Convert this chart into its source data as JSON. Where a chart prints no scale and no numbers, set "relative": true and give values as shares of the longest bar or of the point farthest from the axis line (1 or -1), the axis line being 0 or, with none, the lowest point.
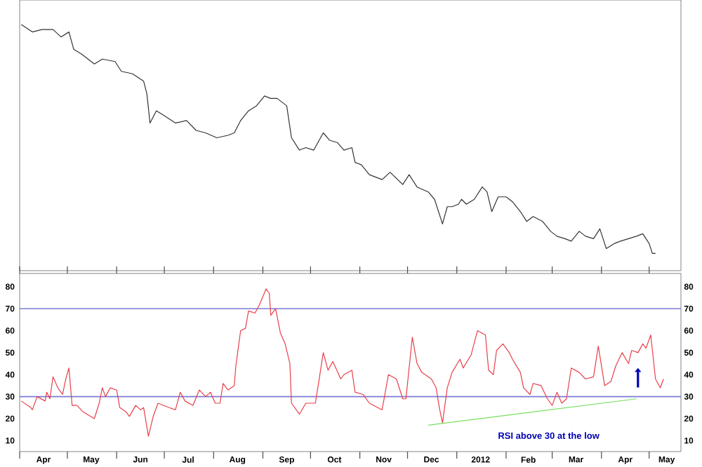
{
  "chart_data": [
    {
      "type": "line",
      "relative": true,
      "xlim": [
        "2011-04-01",
        "2012-05-21"
      ],
      "series": [
        {
          "color": "#333333",
          "x": [
            "2011-04-02",
            "2011-04-09",
            "2011-04-15",
            "2011-04-22",
            "2011-04-27",
            "2011-05-02",
            "2011-05-05",
            "2011-05-10",
            "2011-05-18",
            "2011-05-23",
            "2011-05-31",
            "2011-06-04",
            "2011-06-11",
            "2011-06-18",
            "2011-06-20",
            "2011-06-22",
            "2011-06-26",
            "2011-07-01",
            "2011-07-08",
            "2011-07-15",
            "2011-07-21",
            "2011-07-27",
            "2011-08-03",
            "2011-08-10",
            "2011-08-14",
            "2011-08-18",
            "2011-08-23",
            "2011-08-28",
            "2011-09-02",
            "2011-09-06",
            "2011-09-10",
            "2011-09-16",
            "2011-09-19",
            "2011-09-24",
            "2011-09-28",
            "2011-10-03",
            "2011-10-09",
            "2011-10-13",
            "2011-10-18",
            "2011-10-22",
            "2011-10-27",
            "2011-10-29",
            "2011-11-02",
            "2011-11-07",
            "2011-11-15",
            "2011-11-20",
            "2011-11-28",
            "2011-12-02",
            "2011-12-07",
            "2011-12-14",
            "2011-12-18",
            "2011-12-23",
            "2011-12-26",
            "2011-12-29",
            "2012-01-02",
            "2012-01-04",
            "2012-01-07",
            "2012-01-12",
            "2012-01-17",
            "2012-01-20",
            "2012-01-23",
            "2012-01-27",
            "2012-02-01",
            "2012-02-05",
            "2012-02-10",
            "2012-02-14",
            "2012-02-18",
            "2012-02-24",
            "2012-02-29",
            "2012-03-04",
            "2012-03-09",
            "2012-03-13",
            "2012-03-18",
            "2012-03-22",
            "2012-03-27",
            "2012-03-31",
            "2012-04-04",
            "2012-04-09",
            "2012-04-13",
            "2012-04-18",
            "2012-04-23",
            "2012-04-27",
            "2012-05-01",
            "2012-05-03",
            "2012-05-05"
          ],
          "values": [
            1.0,
            0.97,
            0.98,
            0.98,
            0.95,
            0.97,
            0.9,
            0.88,
            0.84,
            0.86,
            0.85,
            0.81,
            0.8,
            0.77,
            0.72,
            0.6,
            0.65,
            0.63,
            0.6,
            0.61,
            0.57,
            0.56,
            0.54,
            0.55,
            0.56,
            0.61,
            0.65,
            0.67,
            0.71,
            0.7,
            0.7,
            0.67,
            0.54,
            0.49,
            0.5,
            0.49,
            0.56,
            0.53,
            0.52,
            0.49,
            0.5,
            0.44,
            0.43,
            0.39,
            0.37,
            0.4,
            0.35,
            0.39,
            0.34,
            0.32,
            0.29,
            0.19,
            0.26,
            0.26,
            0.27,
            0.29,
            0.27,
            0.29,
            0.34,
            0.32,
            0.24,
            0.3,
            0.3,
            0.28,
            0.24,
            0.2,
            0.22,
            0.2,
            0.16,
            0.14,
            0.13,
            0.12,
            0.16,
            0.14,
            0.13,
            0.17,
            0.09,
            0.11,
            0.12,
            0.13,
            0.14,
            0.15,
            0.11,
            0.07,
            0.07
          ]
        }
      ]
    },
    {
      "type": "line",
      "xlim": [
        "2011-04-01",
        "2012-05-21"
      ],
      "ylim": [
        5,
        86
      ],
      "y2lim": [
        5,
        86
      ],
      "yticks": [
        10,
        20,
        30,
        40,
        50,
        60,
        70,
        80
      ],
      "y2ticks": [
        10,
        20,
        30,
        40,
        50,
        60,
        70,
        80
      ],
      "xticks": [
        {
          "value": "2011-04-01",
          "label": null
        },
        {
          "value": "2011-04-16",
          "label": "Apr"
        },
        {
          "value": "2011-05-01",
          "label": null
        },
        {
          "value": "2011-05-16",
          "label": "May"
        },
        {
          "value": "2011-06-01",
          "label": null
        },
        {
          "value": "2011-06-16",
          "label": "Jun"
        },
        {
          "value": "2011-07-01",
          "label": null
        },
        {
          "value": "2011-07-16",
          "label": "Jul"
        },
        {
          "value": "2011-08-01",
          "label": null
        },
        {
          "value": "2011-08-16",
          "label": "Aug"
        },
        {
          "value": "2011-09-01",
          "label": null
        },
        {
          "value": "2011-09-16",
          "label": "Sep"
        },
        {
          "value": "2011-10-01",
          "label": null
        },
        {
          "value": "2011-10-16",
          "label": "Oct"
        },
        {
          "value": "2011-11-01",
          "label": null
        },
        {
          "value": "2011-11-16",
          "label": "Nov"
        },
        {
          "value": "2011-12-01",
          "label": null
        },
        {
          "value": "2011-12-16",
          "label": "Dec"
        },
        {
          "value": "2012-01-01",
          "label": null
        },
        {
          "value": "2012-01-16",
          "label": "2012"
        },
        {
          "value": "2012-02-01",
          "label": null
        },
        {
          "value": "2012-02-15",
          "label": "Feb"
        },
        {
          "value": "2012-03-01",
          "label": null
        },
        {
          "value": "2012-03-16",
          "label": "Mar"
        },
        {
          "value": "2012-04-01",
          "label": null
        },
        {
          "value": "2012-04-16",
          "label": "Apr"
        },
        {
          "value": "2012-05-01",
          "label": null
        },
        {
          "value": "2012-05-12",
          "label": "May"
        }
      ],
      "ref_lines": [
        {
          "axis": "y",
          "value": 70,
          "color": "#7b7bd6"
        },
        {
          "axis": "y",
          "value": 30,
          "color": "#7b7bd6"
        }
      ],
      "annotations": [
        "RSI above 30 at the low"
      ],
      "series": [
        {
          "color": "#e8404a",
          "x": [
            "2011-04-02",
            "2011-04-08",
            "2011-04-09",
            "2011-04-12",
            "2011-04-17",
            "2011-04-18",
            "2011-04-20",
            "2011-04-22",
            "2011-04-25",
            "2011-04-28",
            "2011-04-30",
            "2011-05-02",
            "2011-05-04",
            "2011-05-07",
            "2011-05-11",
            "2011-05-18",
            "2011-05-21",
            "2011-05-23",
            "2011-05-25",
            "2011-05-28",
            "2011-06-01",
            "2011-06-03",
            "2011-06-07",
            "2011-06-09",
            "2011-06-13",
            "2011-06-16",
            "2011-06-18",
            "2011-06-21",
            "2011-06-24",
            "2011-06-27",
            "2011-07-04",
            "2011-07-08",
            "2011-07-11",
            "2011-07-14",
            "2011-07-19",
            "2011-07-23",
            "2011-07-27",
            "2011-07-30",
            "2011-08-02",
            "2011-08-05",
            "2011-08-07",
            "2011-08-10",
            "2011-08-14",
            "2011-08-15",
            "2011-08-18",
            "2011-08-21",
            "2011-08-23",
            "2011-08-27",
            "2011-08-30",
            "2011-09-03",
            "2011-09-05",
            "2011-09-06",
            "2011-09-09",
            "2011-09-12",
            "2011-09-15",
            "2011-09-18",
            "2011-09-19",
            "2011-09-24",
            "2011-09-28",
            "2011-10-04",
            "2011-10-06",
            "2011-10-09",
            "2011-10-12",
            "2011-10-15",
            "2011-10-20",
            "2011-10-22",
            "2011-10-27",
            "2011-10-29",
            "2011-11-03",
            "2011-11-07",
            "2011-11-15",
            "2011-11-19",
            "2011-11-24",
            "2011-11-28",
            "2011-11-30",
            "2011-12-04",
            "2011-12-07",
            "2011-12-10",
            "2011-12-16",
            "2011-12-19",
            "2011-12-21",
            "2011-12-23",
            "2011-12-26",
            "2011-12-29",
            "2012-01-03",
            "2012-01-05",
            "2012-01-10",
            "2012-01-14",
            "2012-01-19",
            "2012-01-21",
            "2012-01-24",
            "2012-01-26",
            "2012-01-30",
            "2012-02-03",
            "2012-02-05",
            "2012-02-10",
            "2012-02-12",
            "2012-02-16",
            "2012-02-18",
            "2012-02-23",
            "2012-02-27",
            "2012-03-01",
            "2012-03-04",
            "2012-03-07",
            "2012-03-10",
            "2012-03-13",
            "2012-03-18",
            "2012-03-22",
            "2012-03-27",
            "2012-03-30",
            "2012-04-03",
            "2012-04-07",
            "2012-04-10",
            "2012-04-14",
            "2012-04-18",
            "2012-04-20",
            "2012-04-24",
            "2012-04-27",
            "2012-04-29",
            "2012-05-02",
            "2012-05-05",
            "2012-05-08",
            "2012-05-10"
          ],
          "values": [
            28,
            25,
            24,
            30,
            28,
            32,
            29,
            39,
            34,
            31,
            38,
            43,
            26,
            26,
            23,
            20,
            27,
            34,
            30,
            34,
            33,
            25,
            23,
            21,
            26,
            24,
            25,
            12,
            21,
            27,
            25,
            24,
            32,
            28,
            26,
            33,
            30,
            32,
            27,
            27,
            36,
            33,
            35,
            44,
            60,
            61,
            69,
            68,
            72,
            79,
            77,
            67,
            70,
            59,
            54,
            45,
            27,
            22,
            27,
            27,
            36,
            50,
            42,
            46,
            38,
            40,
            42,
            32,
            31,
            27,
            24,
            40,
            38,
            29,
            29,
            57,
            45,
            41,
            38,
            34,
            25,
            18,
            34,
            41,
            47,
            43,
            49,
            60,
            58,
            42,
            40,
            51,
            54,
            50,
            47,
            41,
            34,
            31,
            36,
            35,
            29,
            26,
            32,
            27,
            29,
            43,
            41,
            38,
            39,
            53,
            35,
            37,
            44,
            50,
            45,
            51,
            50,
            54,
            52,
            58,
            38,
            34,
            38
          ]
        },
        {
          "color": "#77e060",
          "x": [
            "2011-12-14",
            "2012-04-23"
          ],
          "values": [
            17,
            29
          ]
        }
      ]
    }
  ]
}
